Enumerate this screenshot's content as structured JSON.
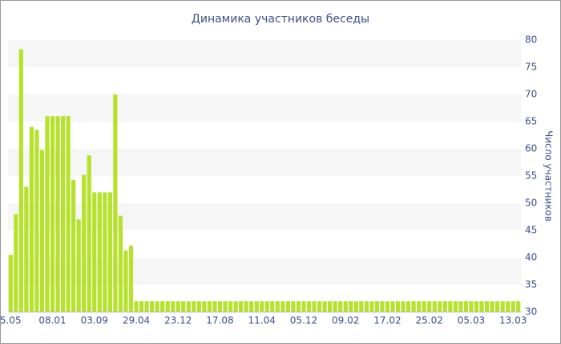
{
  "chart_data": {
    "type": "bar",
    "title": "Динамика участников беседы",
    "y_label": "Число участников",
    "categories": [
      "5.05",
      null,
      null,
      null,
      null,
      null,
      null,
      null,
      "08.01",
      null,
      null,
      null,
      null,
      null,
      null,
      null,
      "03.09",
      null,
      null,
      null,
      null,
      null,
      null,
      null,
      "29.04",
      null,
      null,
      null,
      null,
      null,
      null,
      null,
      "23.12",
      null,
      null,
      null,
      null,
      null,
      null,
      null,
      "17.08",
      null,
      null,
      null,
      null,
      null,
      null,
      null,
      "11.04",
      null,
      null,
      null,
      null,
      null,
      null,
      null,
      "05.12",
      null,
      null,
      null,
      null,
      null,
      null,
      null,
      "09.02",
      null,
      null,
      null,
      null,
      null,
      null,
      null,
      "17.02",
      null,
      null,
      null,
      null,
      null,
      null,
      null,
      "25.02",
      null,
      null,
      null,
      null,
      null,
      null,
      null,
      "05.03",
      null,
      null,
      null,
      null,
      null,
      null,
      null,
      "13.03",
      null
    ],
    "values": [
      40.5,
      48,
      78.3,
      53,
      64,
      63.5,
      59.8,
      66,
      66,
      66,
      66,
      66,
      54.3,
      47,
      55.2,
      58.8,
      52,
      52,
      52,
      52,
      70,
      47.7,
      41.3,
      42.2,
      32,
      32,
      32,
      32,
      32,
      32,
      32,
      32,
      32,
      32,
      32,
      32,
      32,
      32,
      32,
      32,
      32,
      32,
      32,
      32,
      32,
      32,
      32,
      32,
      32,
      32,
      32,
      32,
      32,
      32,
      32,
      32,
      32,
      32,
      32,
      32,
      32,
      32,
      32,
      32,
      32,
      32,
      32,
      32,
      32,
      32,
      32,
      32,
      32,
      32,
      32,
      32,
      32,
      32,
      32,
      32,
      32,
      32,
      32,
      32,
      32,
      32,
      32,
      32,
      32,
      32,
      32,
      32,
      32,
      32,
      32,
      32,
      32,
      32
    ],
    "color": "#b6e22e",
    "ylim": [
      30,
      80
    ],
    "yticks": [
      30,
      35,
      40,
      45,
      50,
      55,
      60,
      65,
      70,
      75,
      80
    ],
    "grid_bands": true,
    "y_axis_side": "right"
  }
}
